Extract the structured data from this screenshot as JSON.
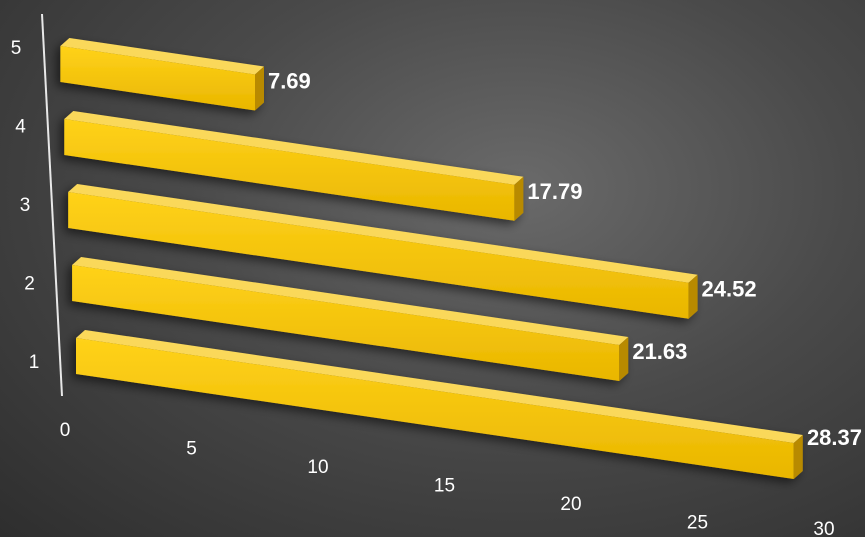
{
  "chart_data": {
    "type": "bar",
    "orientation": "horizontal",
    "style": "3d",
    "categories": [
      "1",
      "2",
      "3",
      "4",
      "5"
    ],
    "values": [
      28.37,
      21.63,
      24.52,
      17.79,
      7.69
    ],
    "data_labels": [
      "28.37",
      "21.63",
      "24.52",
      "17.79",
      "7.69"
    ],
    "x_ticks": [
      "0",
      "5",
      "10",
      "15",
      "20",
      "25",
      "30"
    ],
    "xlim": [
      0,
      30
    ],
    "title": "",
    "xlabel": "",
    "ylabel": "",
    "grid": false,
    "legend": "none",
    "colors": {
      "bar_front": "#f5c400",
      "bar_top": "#fad85a",
      "bar_side": "#b88a00",
      "axis": "#e8e8e8",
      "text": "#ffffff"
    }
  }
}
